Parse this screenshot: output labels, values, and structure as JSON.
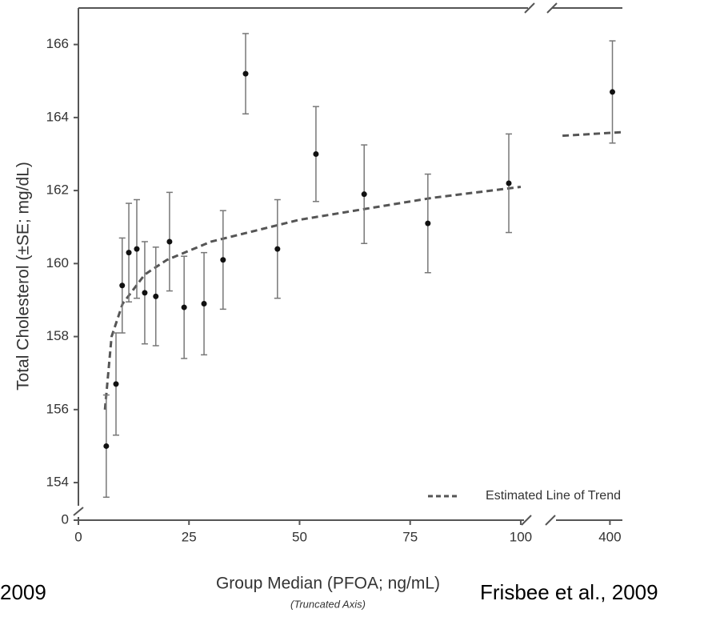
{
  "chart_data": {
    "type": "scatter",
    "y_label": "Total Cholesterol (±SE; mg/dL)",
    "x_label": "Group Median (PFOA; ng/mL)",
    "x_note": "(Truncated Axis)",
    "annotations": [
      "2009",
      "Frisbee et al., 2009"
    ],
    "x": [
      6.3,
      8.5,
      9.9,
      11.4,
      13.2,
      15.0,
      17.5,
      20.6,
      23.9,
      28.4,
      32.7,
      37.8,
      45.0,
      53.7,
      64.6,
      79.0,
      97.3,
      402
    ],
    "values": [
      155.0,
      156.7,
      159.4,
      160.3,
      160.4,
      159.2,
      159.1,
      160.6,
      158.8,
      158.9,
      160.1,
      165.2,
      160.4,
      163.0,
      161.9,
      161.1,
      162.2,
      164.7
    ],
    "errors": [
      1.4,
      1.4,
      1.3,
      1.35,
      1.35,
      1.4,
      1.35,
      1.35,
      1.4,
      1.4,
      1.35,
      1.1,
      1.35,
      1.3,
      1.35,
      1.35,
      1.35,
      1.4
    ],
    "color": "#111111",
    "error_color": "#777777",
    "trend": {
      "name": "Estimated Line of Trend",
      "color": "#555555",
      "segments": [
        {
          "x": [
            6,
            7.5,
            10,
            15,
            20,
            30,
            40,
            50,
            60,
            70,
            80,
            90,
            100
          ],
          "values": [
            156.0,
            158.0,
            158.9,
            159.7,
            160.1,
            160.6,
            160.9,
            161.2,
            161.4,
            161.6,
            161.8,
            161.95,
            162.1
          ]
        },
        {
          "x": [
            362,
            410
          ],
          "values": [
            163.5,
            163.6
          ]
        }
      ]
    },
    "legend": "lower right",
    "xlim": [
      0,
      102
    ],
    "xticks": [
      0,
      25,
      50,
      75,
      100
    ],
    "x_break": {
      "xlim": [
        360,
        410
      ],
      "xticks": [
        400
      ]
    },
    "ylim": [
      153.3,
      167
    ],
    "yticks": [
      154,
      156,
      158,
      160,
      162,
      164,
      166
    ],
    "y_break": {
      "ticks": [
        0
      ]
    }
  }
}
